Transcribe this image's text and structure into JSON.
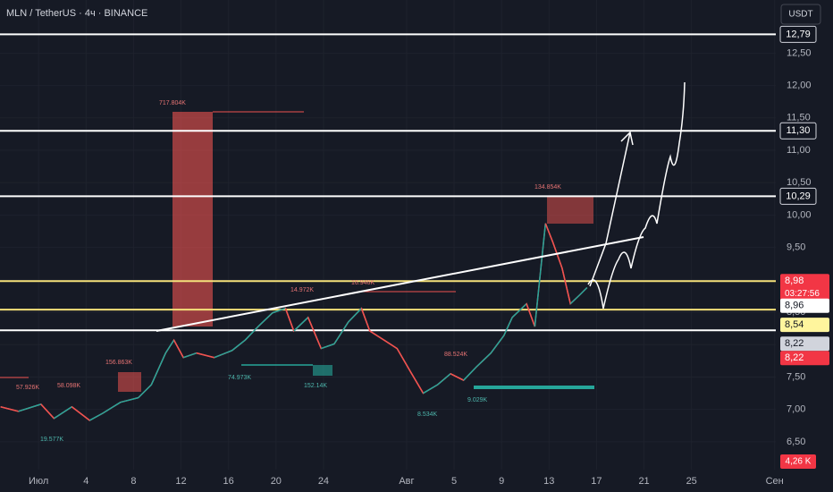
{
  "chart_data": {
    "type": "line",
    "title": "MLN / TetherUS · 4ч · BINANCE",
    "currency": "USDT",
    "x": [
      -3.2,
      -1.7,
      0.2,
      1.3,
      2.8,
      4.3,
      5.4,
      6.9,
      8.4,
      9.5,
      10.7,
      11.4,
      12.2,
      13.3,
      14.8,
      16.3,
      17.4,
      18.5,
      19.7,
      20.8,
      21.5,
      22.7,
      23.8,
      24.9,
      26.1,
      27.2,
      27.9,
      29.1,
      30.2,
      31.3,
      32.4,
      33.6,
      34.7,
      35.8,
      36.9,
      38.1,
      39.2,
      39.9,
      41.1,
      41.8,
      42.7,
      43.3,
      44.1,
      44.8,
      45.6,
      46.2
    ],
    "series": [
      {
        "name": "MLN",
        "color": "#ef5350",
        "values": [
          7.04,
          6.97,
          7.08,
          6.86,
          7.04,
          6.83,
          6.94,
          7.11,
          7.18,
          7.38,
          7.87,
          8.07,
          7.8,
          7.87,
          7.8,
          7.91,
          8.07,
          8.28,
          8.49,
          8.56,
          8.21,
          8.42,
          7.94,
          8.01,
          8.35,
          8.56,
          8.21,
          8.07,
          7.94,
          7.59,
          7.25,
          7.38,
          7.55,
          7.45,
          7.66,
          7.87,
          8.14,
          8.42,
          8.63,
          8.28,
          9.87,
          9.59,
          9.18,
          8.63,
          8.77,
          8.88
        ]
      }
    ],
    "xlim": [
      -3.25,
      62.1
    ],
    "xticks": [
      {
        "value": 0,
        "label": "Июл"
      },
      4,
      8,
      12,
      16,
      20,
      24,
      {
        "value": 31,
        "label": "Авг"
      },
      {
        "value": 35,
        "label": "5"
      },
      {
        "value": 39,
        "label": "9"
      },
      {
        "value": 43,
        "label": "13"
      },
      {
        "value": 47,
        "label": "17"
      },
      {
        "value": 51,
        "label": "21"
      },
      {
        "value": 55,
        "label": "25"
      },
      {
        "value": 62,
        "label": "Сен"
      }
    ],
    "ylim": [
      6.07,
      13.32
    ],
    "yticks": [
      {
        "value": 6.5,
        "label": "6,50"
      },
      {
        "value": 7,
        "label": "7,00"
      },
      {
        "value": 7.5,
        "label": "7,50"
      },
      {
        "value": 8,
        "label": "8,00"
      },
      {
        "value": 8.5,
        "label": "8,50"
      },
      {
        "value": 9,
        "label": "9,00"
      },
      {
        "value": 9.5,
        "label": "9,50"
      },
      {
        "value": 10,
        "label": "10,00"
      },
      {
        "value": 10.5,
        "label": "10,50"
      },
      {
        "value": 11,
        "label": "11,00"
      },
      {
        "value": 11.5,
        "label": "11,50"
      },
      {
        "value": 12,
        "label": "12,00"
      },
      {
        "value": 12.5,
        "label": "12,50"
      }
    ],
    "levels": [
      {
        "value": 12.79,
        "label": "12,79",
        "color": "#ffffff"
      },
      {
        "value": 11.3,
        "label": "11,30",
        "color": "#ffffff"
      },
      {
        "value": 10.29,
        "label": "10,29",
        "color": "#ffffff"
      },
      {
        "value": 8.98,
        "label": "8,98",
        "color": "#f5e17a"
      },
      {
        "value": 8.54,
        "label": "8,54",
        "color": "#f5e17a"
      },
      {
        "value": 8.22,
        "label": "8,22",
        "color": "#ffffff"
      }
    ],
    "badges": [
      {
        "value": 8.98,
        "label": "8,98",
        "bg": "#f23645",
        "fg": "#ffffff"
      },
      {
        "value": 8.96,
        "label": "8,96",
        "bg": "#ffffff",
        "fg": "#131722"
      },
      {
        "value": 8.54,
        "label": "8,54",
        "bg": "#fff59d",
        "fg": "#131722"
      },
      {
        "value": 8.22,
        "label": "8,22",
        "bg": "#d1d4dc",
        "fg": "#131722"
      },
      {
        "value": 8.22,
        "label": "8,22",
        "bg": "#f23645",
        "fg": "#ffffff"
      }
    ],
    "countdown": "03:27:56",
    "volume_label": "4,26 K",
    "annotations": [
      "717.804K",
      "14.972K",
      "16.946K",
      "134.854K",
      "156.863K",
      "58.098K",
      "57.926K",
      "88.524K",
      "74.973K",
      "152.14K",
      "8.534K",
      "9.029K",
      "19.577K"
    ]
  }
}
